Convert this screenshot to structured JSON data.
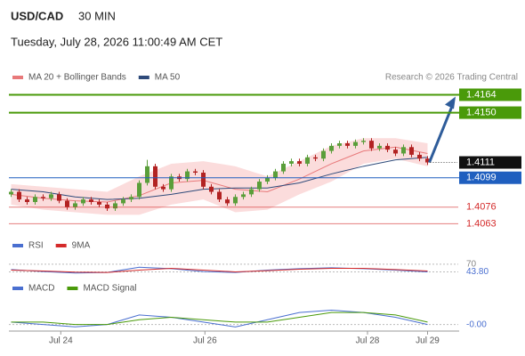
{
  "header": {
    "symbol": "USD/CAD",
    "timeframe": "30 MIN",
    "datetime": "Tuesday, July 28, 2026 11:00:49 AM CET",
    "credit": "Research © 2026 Trading Central"
  },
  "chart_data": [
    {
      "type": "candlestick",
      "xlim": [
        -0.5,
        56.5
      ],
      "ylim": [
        1.4057,
        1.4172
      ],
      "up_color": "#5a9e3a",
      "down_color": "#b22222",
      "open": [
        1.4086,
        1.4088,
        1.4082,
        1.408,
        1.4084,
        1.4083,
        1.4086,
        1.4081,
        1.4076,
        1.4079,
        1.4082,
        1.408,
        1.4078,
        1.4075,
        1.4079,
        1.4082,
        1.4084,
        1.4095,
        1.4108,
        1.4092,
        1.409,
        1.41,
        1.4098,
        1.4104,
        1.4103,
        1.4092,
        1.4088,
        1.4082,
        1.4079,
        1.4084,
        1.4086,
        1.409,
        1.4096,
        1.4099,
        1.4104,
        1.411,
        1.4112,
        1.411,
        1.4115,
        1.4114,
        1.412,
        1.4124,
        1.4126,
        1.4124,
        1.4127,
        1.4128,
        1.4122,
        1.4124,
        1.4121,
        1.4118,
        1.4123,
        1.4117,
        1.4114
      ],
      "high": [
        1.409,
        1.409,
        1.4084,
        1.4086,
        1.4086,
        1.4088,
        1.4088,
        1.4083,
        1.4081,
        1.4084,
        1.4084,
        1.4082,
        1.408,
        1.4081,
        1.4084,
        1.4086,
        1.4097,
        1.4113,
        1.411,
        1.4094,
        1.4102,
        1.4102,
        1.4106,
        1.4106,
        1.4105,
        1.4094,
        1.409,
        1.4084,
        1.4086,
        1.4088,
        1.4092,
        1.4098,
        1.4101,
        1.4106,
        1.4112,
        1.4114,
        1.4114,
        1.4117,
        1.4117,
        1.4122,
        1.4126,
        1.4128,
        1.4128,
        1.4129,
        1.413,
        1.413,
        1.4126,
        1.4126,
        1.4123,
        1.4125,
        1.4125,
        1.4119,
        1.4116
      ],
      "low": [
        1.4084,
        1.408,
        1.4078,
        1.4078,
        1.4081,
        1.4081,
        1.4079,
        1.4074,
        1.4074,
        1.4077,
        1.4078,
        1.4076,
        1.4073,
        1.4073,
        1.4077,
        1.408,
        1.4082,
        1.4093,
        1.409,
        1.4088,
        1.4088,
        1.4096,
        1.4096,
        1.4101,
        1.409,
        1.4086,
        1.408,
        1.4077,
        1.4077,
        1.4082,
        1.4084,
        1.4088,
        1.4094,
        1.4097,
        1.4102,
        1.4108,
        1.4108,
        1.4108,
        1.4112,
        1.4112,
        1.4118,
        1.4122,
        1.4122,
        1.4122,
        1.4125,
        1.412,
        1.412,
        1.4119,
        1.4116,
        1.4116,
        1.4115,
        1.4112,
        1.4109
      ],
      "close": [
        1.4088,
        1.4082,
        1.408,
        1.4084,
        1.4083,
        1.4086,
        1.4081,
        1.4076,
        1.4079,
        1.4082,
        1.408,
        1.4078,
        1.4075,
        1.4079,
        1.4082,
        1.4084,
        1.4095,
        1.4108,
        1.4092,
        1.409,
        1.41,
        1.4098,
        1.4104,
        1.4103,
        1.4092,
        1.4088,
        1.4082,
        1.4079,
        1.4084,
        1.4086,
        1.409,
        1.4096,
        1.4099,
        1.4104,
        1.411,
        1.4112,
        1.411,
        1.4115,
        1.4114,
        1.412,
        1.4124,
        1.4126,
        1.4124,
        1.4127,
        1.4128,
        1.4122,
        1.4124,
        1.4121,
        1.4118,
        1.4123,
        1.4117,
        1.4114,
        1.4111
      ],
      "series": [
        {
          "name": "MA 20 + Bollinger Bands",
          "color": "#e8797a",
          "band_color": "#fbdcdc",
          "x": [
            0,
            4,
            8,
            12,
            16,
            20,
            24,
            28,
            32,
            36,
            40,
            44,
            48,
            52
          ],
          "values": [
            1.4086,
            1.4083,
            1.4081,
            1.408,
            1.4085,
            1.4095,
            1.4097,
            1.409,
            1.4088,
            1.4098,
            1.411,
            1.412,
            1.4123,
            1.4118
          ],
          "upper": [
            1.4094,
            1.4092,
            1.409,
            1.4088,
            1.41,
            1.411,
            1.4112,
            1.4108,
            1.41,
            1.4112,
            1.4124,
            1.413,
            1.413,
            1.4126
          ],
          "lower": [
            1.4078,
            1.4074,
            1.4072,
            1.407,
            1.407,
            1.4078,
            1.4082,
            1.4072,
            1.4074,
            1.4086,
            1.4096,
            1.411,
            1.4114,
            1.4108
          ]
        },
        {
          "name": "MA 50",
          "color": "#2e4a7a",
          "x": [
            0,
            4,
            8,
            12,
            16,
            20,
            24,
            28,
            32,
            36,
            40,
            44,
            48,
            52
          ],
          "values": [
            1.409,
            1.4088,
            1.4084,
            1.4082,
            1.4083,
            1.4086,
            1.409,
            1.4091,
            1.4091,
            1.4095,
            1.4102,
            1.4108,
            1.4113,
            1.4115
          ]
        }
      ],
      "levels": [
        {
          "value": 1.4164,
          "label": "1.4164",
          "color": "#4a9a0a",
          "style": "box",
          "target": true
        },
        {
          "value": 1.415,
          "label": "1.4150",
          "color": "#4a9a0a",
          "style": "box"
        },
        {
          "value": 1.4111,
          "label": "1.4111",
          "color": "#222222",
          "style": "current"
        },
        {
          "value": 1.4099,
          "label": "1.4099",
          "color": "#1f5fbf",
          "style": "box"
        },
        {
          "value": 1.4076,
          "label": "1.4076",
          "color": "#d42a2a",
          "style": "text"
        },
        {
          "value": 1.4063,
          "label": "1.4063",
          "color": "#d42a2a",
          "style": "text"
        }
      ],
      "arrow_color": "#2e5c9a"
    },
    {
      "type": "line",
      "xlim": [
        -0.5,
        56.5
      ],
      "ylim": [
        0,
        100
      ],
      "yticks": [
        70,
        {
          "value": 43.8,
          "label": "43.80"
        }
      ],
      "series": [
        {
          "name": "RSI",
          "color": "#4a6fd0",
          "x": [
            0,
            4,
            8,
            12,
            16,
            20,
            24,
            28,
            32,
            36,
            40,
            44,
            48,
            52
          ],
          "values": [
            52,
            45,
            40,
            42,
            60,
            55,
            45,
            42,
            50,
            55,
            58,
            55,
            50,
            43.8
          ]
        },
        {
          "name": "9MA",
          "color": "#d42a2a",
          "x": [
            0,
            4,
            8,
            12,
            16,
            20,
            24,
            28,
            32,
            36,
            40,
            44,
            48,
            52
          ],
          "values": [
            50,
            47,
            43,
            42,
            50,
            56,
            50,
            44,
            48,
            53,
            56,
            56,
            52,
            47
          ]
        }
      ]
    },
    {
      "type": "line",
      "xlim": [
        -0.5,
        56.5
      ],
      "ylim": [
        -0.0003,
        0.001
      ],
      "yticks": [
        {
          "value": -0.0001,
          "label": "-0.00"
        }
      ],
      "xticks": [
        {
          "value": 6.2,
          "label": "Jul 24"
        },
        {
          "value": 24.2,
          "label": "Jul 26"
        },
        {
          "value": 44.5,
          "label": "Jul 28"
        },
        {
          "value": 52,
          "label": "Jul 29"
        }
      ],
      "series": [
        {
          "name": "MACD",
          "color": "#4a6fd0",
          "x": [
            0,
            4,
            8,
            12,
            16,
            20,
            24,
            28,
            32,
            36,
            40,
            44,
            48,
            52
          ],
          "values": [
            0,
            -0.0001,
            -0.0002,
            -0.0001,
            0.0003,
            0.0002,
            0,
            -0.0002,
            0.0001,
            0.0004,
            0.0005,
            0.0004,
            0.0002,
            -0.0001
          ]
        },
        {
          "name": "MACD Signal",
          "color": "#4a9a0a",
          "x": [
            0,
            4,
            8,
            12,
            16,
            20,
            24,
            28,
            32,
            36,
            40,
            44,
            48,
            52
          ],
          "values": [
            0,
            0,
            -0.0001,
            -0.0001,
            0.0001,
            0.0002,
            0.0001,
            0,
            0,
            0.0002,
            0.0004,
            0.0004,
            0.0003,
            0
          ]
        }
      ]
    }
  ]
}
